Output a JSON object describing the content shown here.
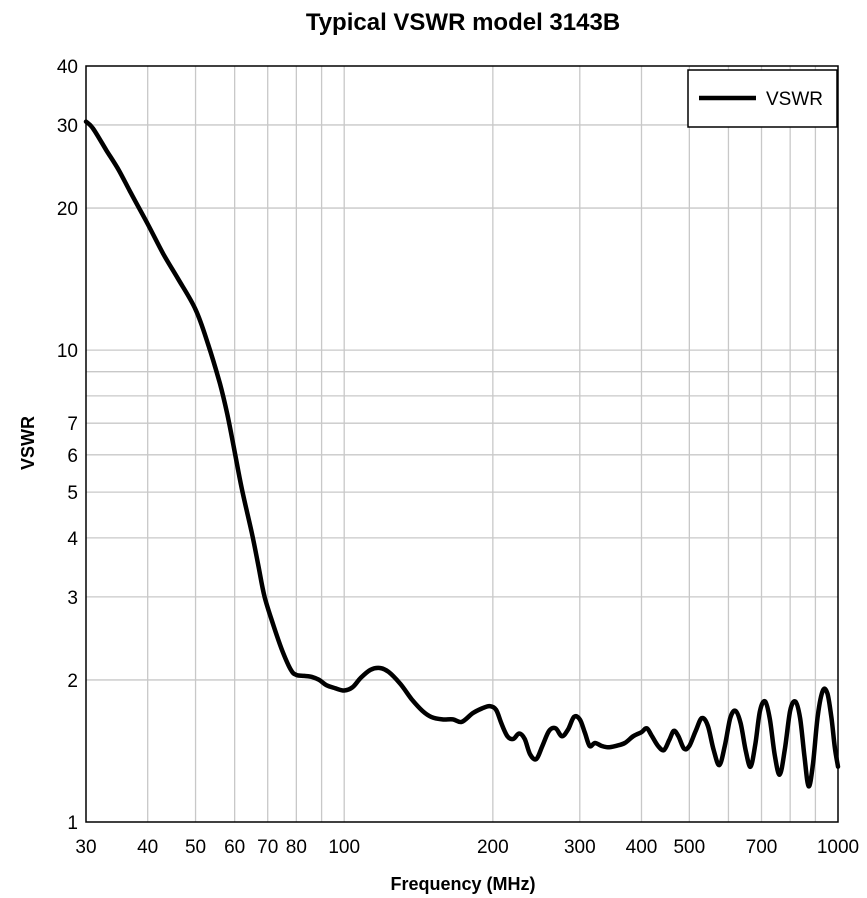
{
  "chart_data": {
    "type": "line",
    "title": "Typical VSWR model 3143B",
    "xlabel": "Frequency (MHz)",
    "ylabel": "VSWR",
    "xscale": "log",
    "yscale": "log",
    "xlim": [
      30,
      1000
    ],
    "ylim": [
      1,
      40
    ],
    "grid": true,
    "legend_position": "top-right",
    "line_color": "#000000",
    "x_ticks": [
      30,
      40,
      50,
      60,
      70,
      80,
      100,
      200,
      300,
      400,
      500,
      700,
      1000
    ],
    "x_tick_labels": [
      "30",
      "40",
      "50",
      "60",
      "70",
      "80",
      "100",
      "200",
      "300",
      "400",
      "500",
      "700",
      "1000"
    ],
    "x_gridlines": [
      40,
      50,
      60,
      70,
      80,
      90,
      100,
      200,
      300,
      400,
      500,
      600,
      700,
      800,
      900
    ],
    "y_ticks": [
      1,
      2,
      3,
      4,
      5,
      6,
      7,
      10,
      20,
      30,
      40
    ],
    "y_tick_labels": [
      "1",
      "2",
      "3",
      "4",
      "5",
      "6",
      "7",
      "10",
      "20",
      "30",
      "40"
    ],
    "y_gridlines": [
      2,
      3,
      4,
      5,
      6,
      7,
      8,
      9,
      10,
      20,
      30
    ],
    "series": [
      {
        "name": "VSWR",
        "points": [
          [
            30,
            30.5
          ],
          [
            31,
            29.5
          ],
          [
            33,
            26.5
          ],
          [
            35,
            24
          ],
          [
            37,
            21.5
          ],
          [
            40,
            18.5
          ],
          [
            43,
            16
          ],
          [
            46,
            14.2
          ],
          [
            50,
            12.2
          ],
          [
            53,
            10.3
          ],
          [
            56,
            8.5
          ],
          [
            58,
            7.3
          ],
          [
            60,
            6.1
          ],
          [
            62,
            5.1
          ],
          [
            65,
            4.1
          ],
          [
            67,
            3.5
          ],
          [
            69,
            3.0
          ],
          [
            72,
            2.6
          ],
          [
            75,
            2.3
          ],
          [
            78,
            2.1
          ],
          [
            80,
            2.05
          ],
          [
            83,
            2.04
          ],
          [
            86,
            2.03
          ],
          [
            89,
            2.0
          ],
          [
            92,
            1.95
          ],
          [
            96,
            1.92
          ],
          [
            100,
            1.9
          ],
          [
            104,
            1.93
          ],
          [
            108,
            2.02
          ],
          [
            113,
            2.1
          ],
          [
            118,
            2.12
          ],
          [
            123,
            2.08
          ],
          [
            130,
            1.96
          ],
          [
            137,
            1.82
          ],
          [
            144,
            1.72
          ],
          [
            150,
            1.67
          ],
          [
            158,
            1.65
          ],
          [
            166,
            1.65
          ],
          [
            173,
            1.63
          ],
          [
            182,
            1.7
          ],
          [
            190,
            1.74
          ],
          [
            197,
            1.76
          ],
          [
            203,
            1.73
          ],
          [
            208,
            1.62
          ],
          [
            214,
            1.52
          ],
          [
            220,
            1.5
          ],
          [
            226,
            1.54
          ],
          [
            232,
            1.5
          ],
          [
            238,
            1.39
          ],
          [
            245,
            1.36
          ],
          [
            252,
            1.45
          ],
          [
            260,
            1.56
          ],
          [
            268,
            1.58
          ],
          [
            276,
            1.52
          ],
          [
            284,
            1.57
          ],
          [
            292,
            1.67
          ],
          [
            300,
            1.65
          ],
          [
            307,
            1.55
          ],
          [
            314,
            1.45
          ],
          [
            322,
            1.47
          ],
          [
            332,
            1.45
          ],
          [
            342,
            1.44
          ],
          [
            355,
            1.45
          ],
          [
            370,
            1.47
          ],
          [
            385,
            1.52
          ],
          [
            400,
            1.55
          ],
          [
            410,
            1.58
          ],
          [
            420,
            1.52
          ],
          [
            432,
            1.45
          ],
          [
            444,
            1.42
          ],
          [
            455,
            1.49
          ],
          [
            465,
            1.56
          ],
          [
            475,
            1.52
          ],
          [
            488,
            1.43
          ],
          [
            500,
            1.45
          ],
          [
            515,
            1.56
          ],
          [
            530,
            1.66
          ],
          [
            545,
            1.6
          ],
          [
            560,
            1.42
          ],
          [
            575,
            1.32
          ],
          [
            590,
            1.45
          ],
          [
            605,
            1.66
          ],
          [
            620,
            1.72
          ],
          [
            635,
            1.62
          ],
          [
            650,
            1.42
          ],
          [
            665,
            1.31
          ],
          [
            680,
            1.46
          ],
          [
            695,
            1.72
          ],
          [
            712,
            1.8
          ],
          [
            728,
            1.65
          ],
          [
            745,
            1.38
          ],
          [
            762,
            1.26
          ],
          [
            780,
            1.42
          ],
          [
            800,
            1.72
          ],
          [
            820,
            1.8
          ],
          [
            838,
            1.66
          ],
          [
            855,
            1.38
          ],
          [
            872,
            1.19
          ],
          [
            890,
            1.33
          ],
          [
            910,
            1.68
          ],
          [
            932,
            1.9
          ],
          [
            952,
            1.87
          ],
          [
            970,
            1.66
          ],
          [
            985,
            1.44
          ],
          [
            1000,
            1.31
          ]
        ]
      }
    ]
  }
}
